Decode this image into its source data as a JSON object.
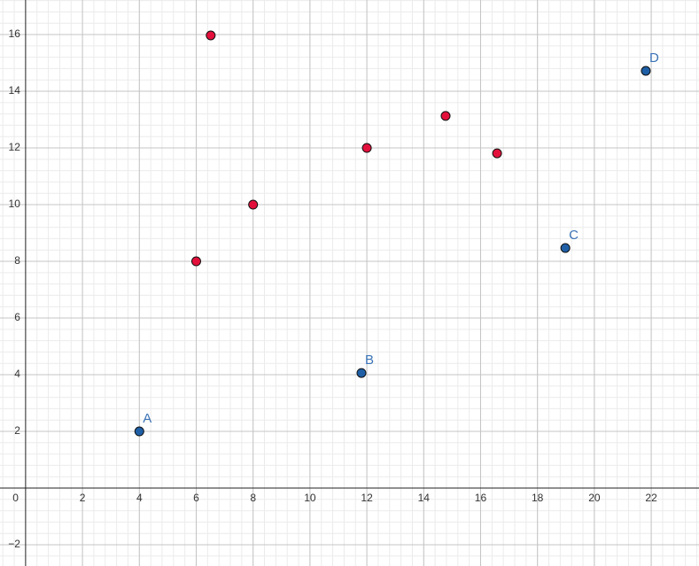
{
  "chart_data": {
    "type": "scatter",
    "xlim": [
      -0.9,
      23.68
    ],
    "ylim": [
      -2.75,
      17.22
    ],
    "xticks": [
      0,
      2,
      4,
      6,
      8,
      10,
      12,
      14,
      16,
      18,
      20,
      22
    ],
    "yticks": [
      {
        "value": -2,
        "label": "−2"
      },
      2,
      4,
      6,
      8,
      10,
      12,
      14,
      16
    ],
    "grid": true,
    "series": [
      {
        "color": "#1f5fa6",
        "label_color": "#3a73b5",
        "x": [
          4,
          11.81,
          18.98,
          21.81
        ],
        "values": [
          2,
          4.06,
          8.47,
          14.72
        ],
        "labels": [
          "A",
          "B",
          "C",
          "D"
        ]
      },
      {
        "color": "#e3103c",
        "x": [
          6,
          8,
          6.51,
          12,
          14.77,
          16.58
        ],
        "values": [
          8,
          10,
          15.97,
          12,
          13.13,
          11.81
        ]
      }
    ]
  }
}
